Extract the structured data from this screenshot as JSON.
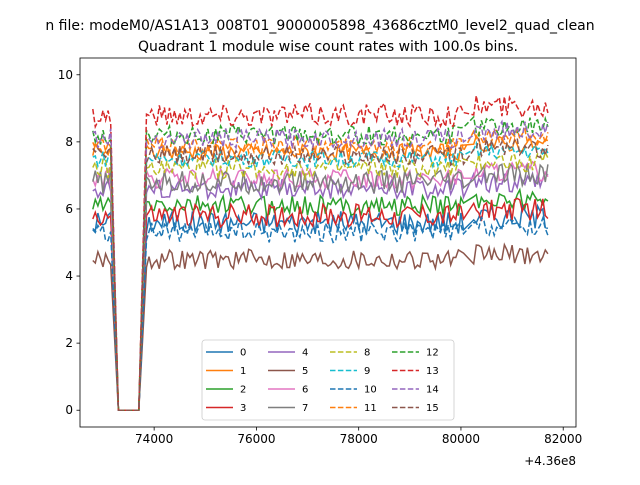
{
  "suptitle": "n file: modeM0/AS1A13_008T01_9000005898_43686cztM0_level2_quad_clean",
  "chart_data": {
    "type": "line",
    "title": "Quadrant 1 module wise count rates with 100.0s bins.",
    "xlabel": "",
    "ylabel": "",
    "x_offset_label": "+4.36e8",
    "xlim": [
      72550,
      82250
    ],
    "ylim": [
      -0.5,
      10.5
    ],
    "x_ticks": [
      74000,
      76000,
      78000,
      80000,
      82000
    ],
    "x_tick_labels": [
      "74000",
      "76000",
      "78000",
      "80000",
      "82000"
    ],
    "y_ticks": [
      0,
      2,
      4,
      6,
      8,
      10
    ],
    "y_tick_labels": [
      "0",
      "2",
      "4",
      "6",
      "8",
      "10"
    ],
    "grid": false,
    "legend_placement": "lower center",
    "segments": [
      {
        "x_start": 72800,
        "x_end": 73150
      },
      {
        "x_start": 73300,
        "x_end": 73700
      },
      {
        "x_start": 73850,
        "x_end": 79250
      },
      {
        "x_start": 79350,
        "x_end": 80050
      },
      {
        "x_start": 80250,
        "x_end": 81700
      }
    ],
    "x_step": 50,
    "series": [
      {
        "name": "0",
        "color": "#1f77b4",
        "dash": "solid",
        "level": 5.6,
        "noise": 0.35,
        "seed": 101
      },
      {
        "name": "1",
        "color": "#ff7f0e",
        "dash": "solid",
        "level": 7.7,
        "noise": 0.25,
        "seed": 102
      },
      {
        "name": "2",
        "color": "#2ca02c",
        "dash": "solid",
        "level": 6.1,
        "noise": 0.3,
        "seed": 103
      },
      {
        "name": "3",
        "color": "#d62728",
        "dash": "solid",
        "level": 5.8,
        "noise": 0.35,
        "seed": 104
      },
      {
        "name": "4",
        "color": "#9467bd",
        "dash": "solid",
        "level": 6.6,
        "noise": 0.3,
        "seed": 105
      },
      {
        "name": "5",
        "color": "#8c564b",
        "dash": "solid",
        "level": 4.5,
        "noise": 0.3,
        "seed": 106
      },
      {
        "name": "6",
        "color": "#e377c2",
        "dash": "solid",
        "level": 6.9,
        "noise": 0.3,
        "seed": 107
      },
      {
        "name": "7",
        "color": "#7f7f7f",
        "dash": "solid",
        "level": 6.8,
        "noise": 0.35,
        "seed": 108
      },
      {
        "name": "8",
        "color": "#bcbd22",
        "dash": "dashed",
        "level": 7.2,
        "noise": 0.3,
        "seed": 109
      },
      {
        "name": "9",
        "color": "#17becf",
        "dash": "dashed",
        "level": 7.5,
        "noise": 0.25,
        "seed": 110
      },
      {
        "name": "10",
        "color": "#1f77b4",
        "dash": "dashed",
        "level": 5.3,
        "noise": 0.3,
        "seed": 111
      },
      {
        "name": "11",
        "color": "#ff7f0e",
        "dash": "dashed",
        "level": 7.9,
        "noise": 0.25,
        "seed": 112
      },
      {
        "name": "12",
        "color": "#2ca02c",
        "dash": "dashed",
        "level": 8.2,
        "noise": 0.3,
        "seed": 113
      },
      {
        "name": "13",
        "color": "#d62728",
        "dash": "dashed",
        "level": 8.8,
        "noise": 0.35,
        "seed": 114
      },
      {
        "name": "14",
        "color": "#9467bd",
        "dash": "dashed",
        "level": 8.1,
        "noise": 0.3,
        "seed": 115
      },
      {
        "name": "15",
        "color": "#8c564b",
        "dash": "dashed",
        "level": 7.6,
        "noise": 0.3,
        "seed": 116
      }
    ]
  }
}
